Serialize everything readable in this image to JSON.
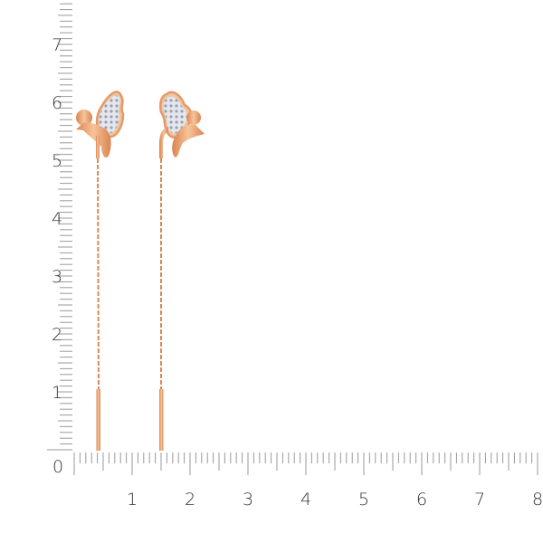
{
  "ruler": {
    "unit_labels_vertical": [
      "1",
      "2",
      "3",
      "4",
      "5",
      "6",
      "7"
    ],
    "unit_labels_horizontal": [
      "1",
      "2",
      "3",
      "4",
      "5",
      "6",
      "7",
      "8"
    ],
    "origin_label": "0",
    "tick_color": "#9a9a9a"
  },
  "product": {
    "item": "pair of threader earrings with bird and pavé leaf",
    "metal_color": "#e8a070",
    "stone_color": "#d8dce4"
  }
}
